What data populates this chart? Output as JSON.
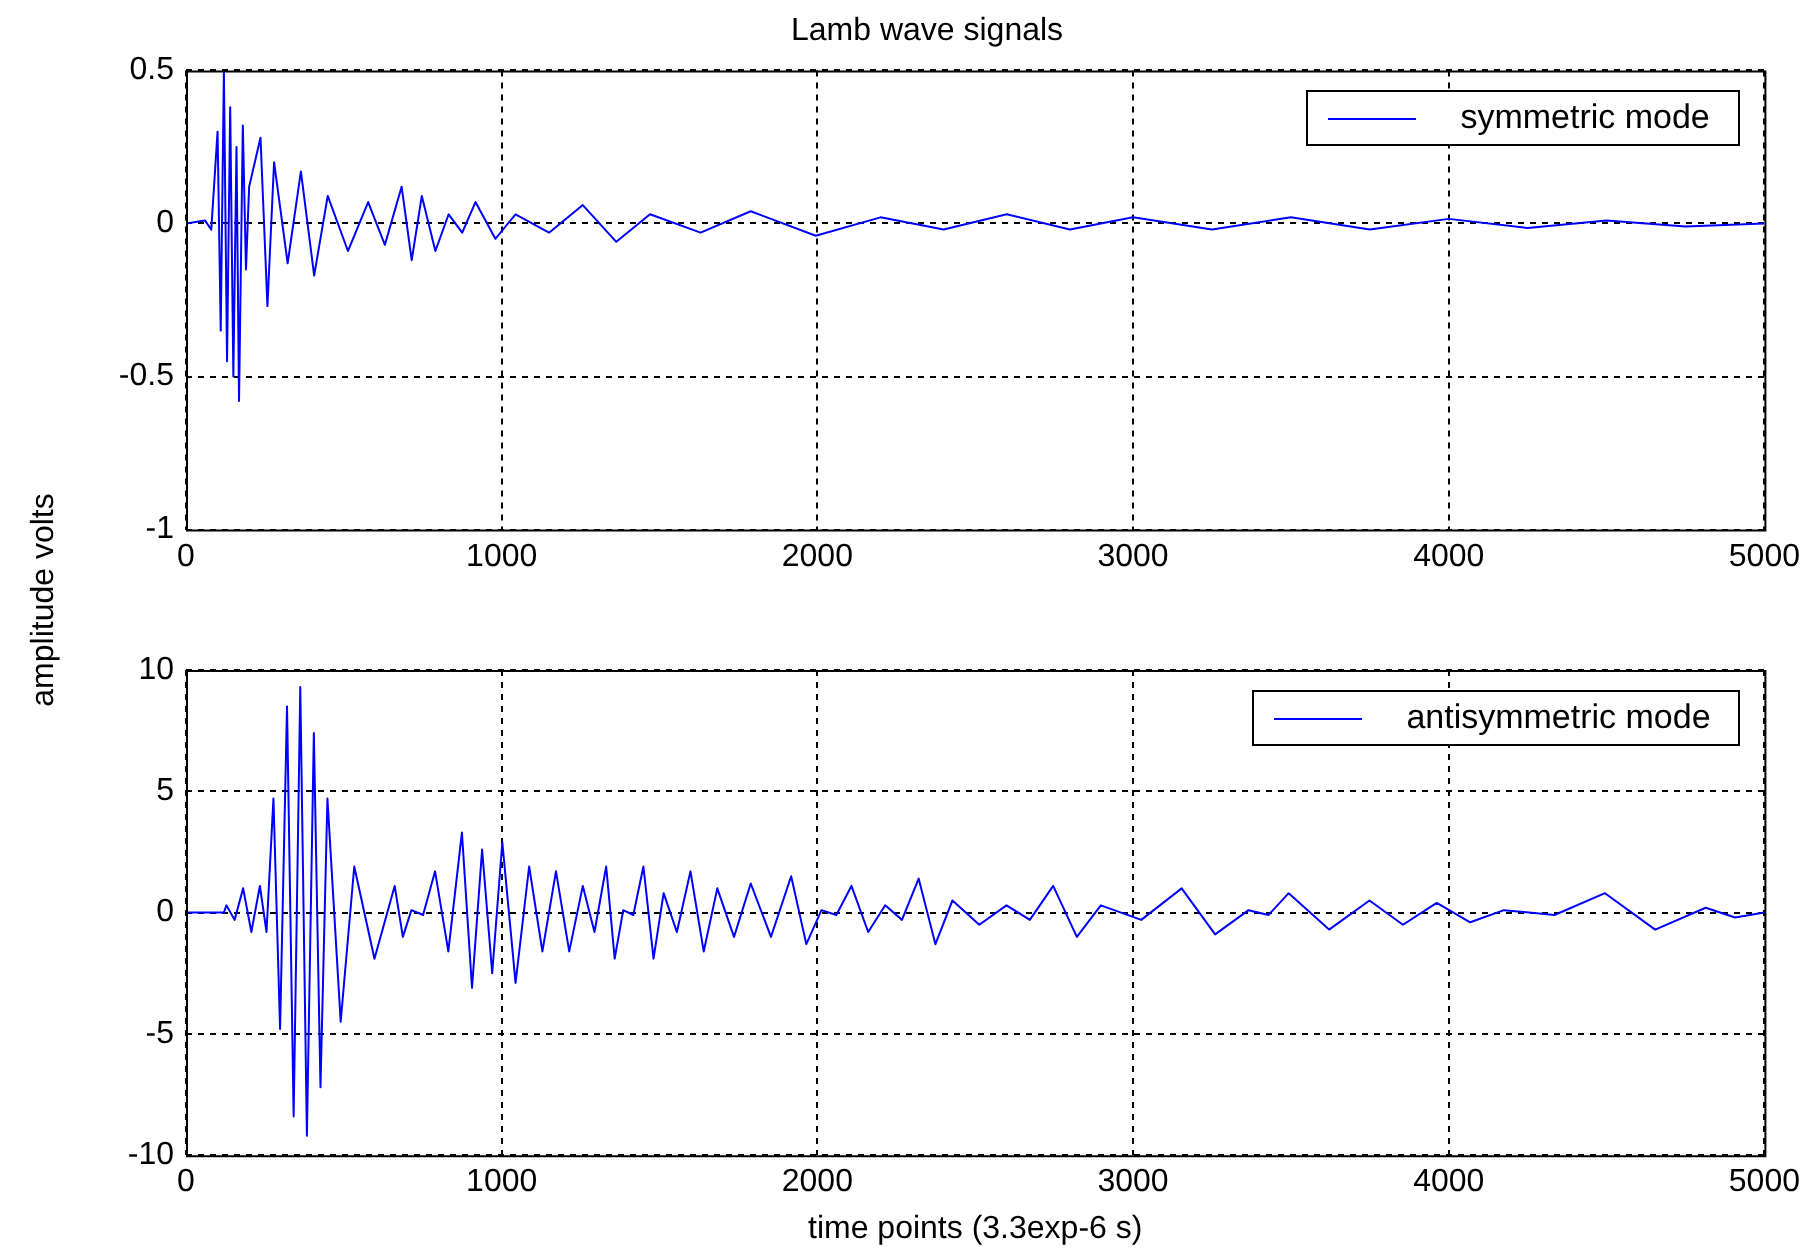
{
  "chart_data": [
    {
      "type": "line",
      "title": "Lamb wave signals",
      "ylabel": "amplitude volts",
      "legend": "top right",
      "grid": true,
      "line_style": "solid",
      "marker": "none",
      "xlim": [
        0,
        5000
      ],
      "xticks": [
        0,
        1000,
        2000,
        3000,
        4000,
        5000
      ],
      "ylim": [
        -1,
        0.5
      ],
      "yticks": [
        -1,
        -0.5,
        0,
        0.5
      ],
      "series": [
        {
          "name": "symmetric mode",
          "color": "#0000ff",
          "x": [
            0,
            60,
            80,
            100,
            110,
            120,
            130,
            140,
            150,
            160,
            168,
            180,
            190,
            200,
            236,
            258,
            279,
            322,
            364,
            406,
            449,
            513,
            577,
            630,
            683,
            715,
            747,
            790,
            832,
            875,
            917,
            980,
            1044,
            1150,
            1257,
            1363,
            1470,
            1630,
            1789,
            1995,
            2200,
            2400,
            2600,
            2800,
            3000,
            3250,
            3500,
            3750,
            4000,
            4250,
            4500,
            4750,
            5000
          ],
          "values": [
            0,
            0.01,
            -0.02,
            0.3,
            -0.35,
            0.5,
            -0.45,
            0.38,
            -0.5,
            0.25,
            -0.58,
            0.32,
            -0.15,
            0.12,
            0.28,
            -0.27,
            0.2,
            -0.13,
            0.17,
            -0.17,
            0.09,
            -0.09,
            0.07,
            -0.07,
            0.12,
            -0.12,
            0.09,
            -0.09,
            0.03,
            -0.03,
            0.07,
            -0.05,
            0.03,
            -0.03,
            0.06,
            -0.06,
            0.03,
            -0.03,
            0.04,
            -0.04,
            0.02,
            -0.02,
            0.03,
            -0.02,
            0.02,
            -0.02,
            0.02,
            -0.02,
            0.015,
            -0.015,
            0.01,
            -0.01,
            0
          ]
        }
      ]
    },
    {
      "type": "line",
      "xlabel": "time points (3.3exp-6 s)",
      "legend": "top right",
      "grid": true,
      "line_style": "solid",
      "marker": "none",
      "xlim": [
        0,
        5000
      ],
      "xticks": [
        0,
        1000,
        2000,
        3000,
        4000,
        5000
      ],
      "ylim": [
        -10,
        10
      ],
      "yticks": [
        -10,
        -5,
        0,
        5,
        10
      ],
      "series": [
        {
          "name": "antisymmetric mode",
          "color": "#0000ff",
          "x": [
            0,
            120,
            128,
            154,
            181,
            207,
            234,
            255,
            277,
            298,
            320,
            341,
            362,
            383,
            405,
            426,
            448,
            490,
            533,
            597,
            661,
            687,
            714,
            751,
            789,
            831,
            874,
            906,
            938,
            970,
            1002,
            1044,
            1087,
            1129,
            1172,
            1214,
            1257,
            1294,
            1331,
            1358,
            1385,
            1417,
            1449,
            1481,
            1513,
            1555,
            1598,
            1640,
            1683,
            1736,
            1789,
            1853,
            1917,
            1965,
            2013,
            2060,
            2108,
            2161,
            2215,
            2268,
            2321,
            2374,
            2428,
            2513,
            2599,
            2673,
            2747,
            2822,
            2898,
            3026,
            3154,
            3260,
            3366,
            3429,
            3493,
            3621,
            3749,
            3855,
            3962,
            4068,
            4175,
            4335,
            4495,
            4654,
            4814,
            4907,
            5000
          ],
          "values": [
            0,
            0,
            0.3,
            -0.3,
            1,
            -0.8,
            1.1,
            -0.8,
            4.7,
            -4.8,
            8.5,
            -8.4,
            9.3,
            -9.2,
            7.4,
            -7.2,
            4.7,
            -4.5,
            1.9,
            -1.9,
            1.1,
            -1,
            0.1,
            -0.1,
            1.7,
            -1.6,
            3.3,
            -3.1,
            2.6,
            -2.5,
            2.9,
            -2.9,
            1.9,
            -1.6,
            1.7,
            -1.6,
            1.1,
            -0.8,
            1.9,
            -1.9,
            0.1,
            -0.1,
            1.9,
            -1.9,
            0.8,
            -0.8,
            1.7,
            -1.6,
            1,
            -1,
            1.2,
            -1,
            1.5,
            -1.3,
            0.1,
            -0.1,
            1.1,
            -0.8,
            0.3,
            -0.3,
            1.4,
            -1.3,
            0.5,
            -0.5,
            0.3,
            -0.3,
            1.1,
            -1,
            0.3,
            -0.3,
            1,
            -0.9,
            0.1,
            -0.1,
            0.8,
            -0.7,
            0.5,
            -0.5,
            0.4,
            -0.4,
            0.1,
            -0.1,
            0.8,
            -0.7,
            0.2,
            -0.2,
            0
          ]
        }
      ]
    }
  ]
}
